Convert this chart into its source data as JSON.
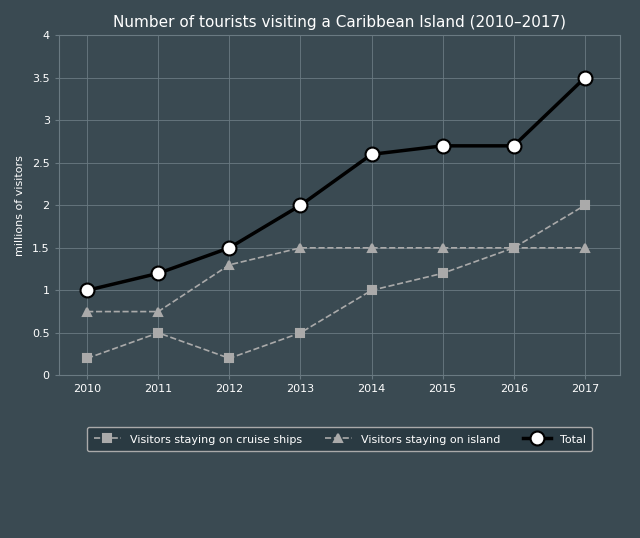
{
  "title": "Number of tourists visiting a Caribbean Island (2010–2017)",
  "ylabel": "millions of visitors",
  "years": [
    2010,
    2011,
    2012,
    2013,
    2014,
    2015,
    2016,
    2017
  ],
  "series_order": [
    "cruise",
    "island",
    "total"
  ],
  "series": {
    "cruise": {
      "label": "Visitors staying on cruise ships",
      "values": [
        0.2,
        0.5,
        0.2,
        0.5,
        1.0,
        1.2,
        1.5,
        2.0
      ],
      "color": "#aaaaaa",
      "linestyle": "--",
      "marker": "s",
      "linewidth": 1.2,
      "markersize": 6
    },
    "island": {
      "label": "Visitors staying on island",
      "values": [
        0.75,
        0.75,
        1.3,
        1.5,
        1.5,
        1.5,
        1.5,
        1.5
      ],
      "color": "#aaaaaa",
      "linestyle": "--",
      "marker": "^",
      "linewidth": 1.2,
      "markersize": 6
    },
    "total": {
      "label": "Total",
      "values": [
        1.0,
        1.2,
        1.5,
        2.0,
        2.6,
        2.7,
        2.7,
        3.5
      ],
      "color": "#000000",
      "linestyle": "-",
      "marker": "o",
      "linewidth": 2.5,
      "markersize": 10
    }
  },
  "ylim": [
    0,
    4.0
  ],
  "yticks": [
    0,
    0.5,
    1.0,
    1.5,
    2.0,
    2.5,
    3.0,
    3.5,
    4.0
  ],
  "ytick_labels": [
    "0",
    "0.5",
    "1",
    "1.5",
    "2",
    "2.5",
    "3",
    "3.5",
    "4"
  ],
  "background_color": "#3a4a52",
  "plot_bg_color": "#3a4a52",
  "grid_color": "#6a7a82",
  "text_color": "#ffffff",
  "title_fontsize": 11,
  "legend_fontsize": 8,
  "axis_fontsize": 8,
  "legend_bg": "#2a3a42",
  "legend_edge": "#aaaaaa"
}
